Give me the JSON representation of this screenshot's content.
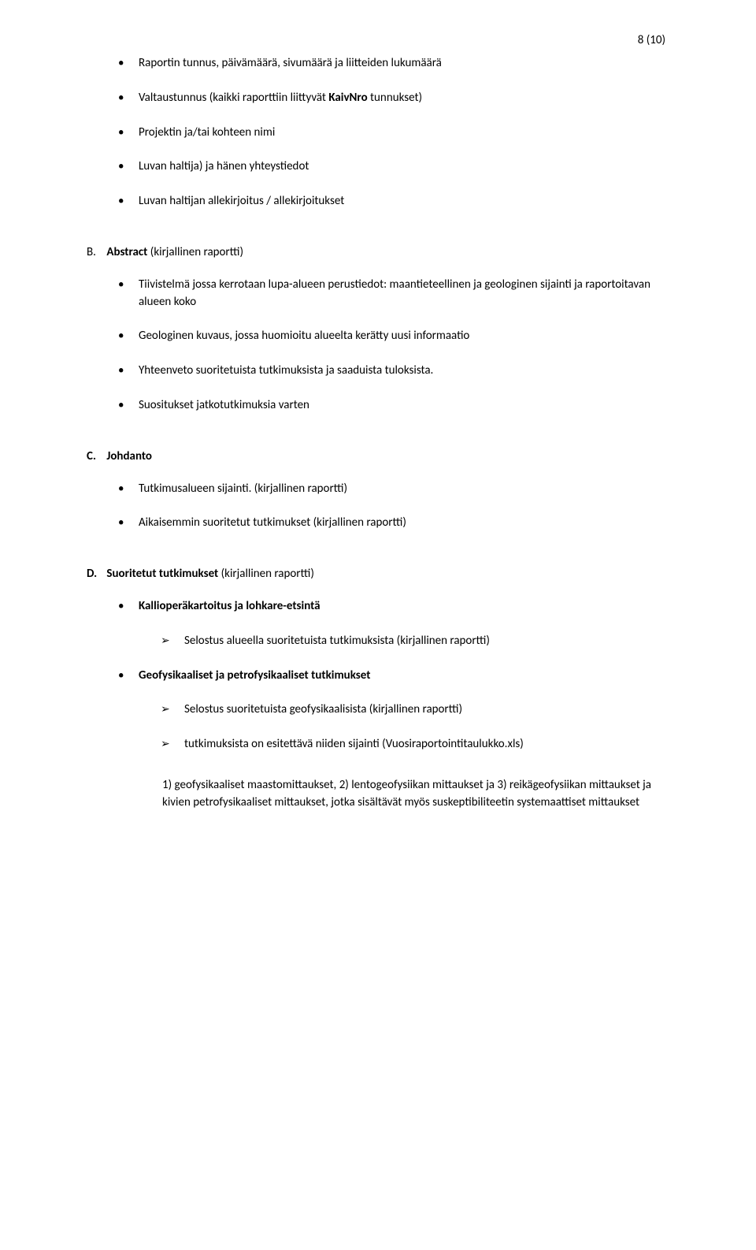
{
  "page_number": "8 (10)",
  "top_bullets": [
    {
      "pre": "Raportin tunnus, päivämäärä, sivumäärä ja liitteiden lukumäärä"
    },
    {
      "pre": "Valtaustunnus (kaikki raporttiin liittyvät ",
      "bold": "KaivNro",
      "post": " tunnukset)"
    },
    {
      "pre": "Projektin ja/tai kohteen nimi"
    },
    {
      "pre": "Luvan haltija) ja hänen yhteystiedot"
    },
    {
      "pre": "Luvan haltijan allekirjoitus / allekirjoitukset"
    }
  ],
  "sections": [
    {
      "label": "B.",
      "title_bold": "Abstract",
      "title_rest": " (kirjallinen raportti)",
      "items": [
        {
          "text": "Tiivistelmä jossa kerrotaan lupa-alueen perustiedot: maantieteellinen ja geologinen sijainti ja raportoitavan alueen koko"
        },
        {
          "text": "Geologinen kuvaus, jossa huomioitu alueelta kerätty uusi informaatio"
        },
        {
          "text": "Yhteenveto suoritetuista tutkimuksista ja saaduista tuloksista."
        },
        {
          "text": "Suositukset jatkotutkimuksia varten"
        }
      ]
    },
    {
      "label": "C.",
      "title_bold": "Johdanto",
      "title_rest": "",
      "items": [
        {
          "text": "Tutkimusalueen sijainti. (kirjallinen raportti)"
        },
        {
          "text": "Aikaisemmin suoritetut tutkimukset (kirjallinen raportti)"
        }
      ]
    },
    {
      "label": "D.",
      "title_bold": "Suoritetut tutkimukset",
      "title_rest": " (kirjallinen raportti)",
      "items": [
        {
          "bold_text": "Kallioperäkartoitus ja lohkare-etsintä",
          "children": [
            {
              "text": "Selostus alueella suoritetuista tutkimuksista (kirjallinen raportti)"
            }
          ]
        },
        {
          "bold_text": "Geofysikaaliset ja petrofysikaaliset tutkimukset",
          "children": [
            {
              "text": "Selostus suoritetuista geofysikaalisista (kirjallinen raportti)"
            },
            {
              "text": "tutkimuksista on esitettävä niiden sijainti (Vuosiraportointitaulukko.xls)",
              "body": "1) geofysikaaliset maastomittaukset, 2) lentogeofysiikan mittaukset ja 3) reikägeofysiikan mittaukset ja kivien petrofysikaaliset mittaukset, jotka sisältävät myös suskeptibiliteetin systemaattiset mittaukset"
            }
          ]
        }
      ]
    }
  ]
}
